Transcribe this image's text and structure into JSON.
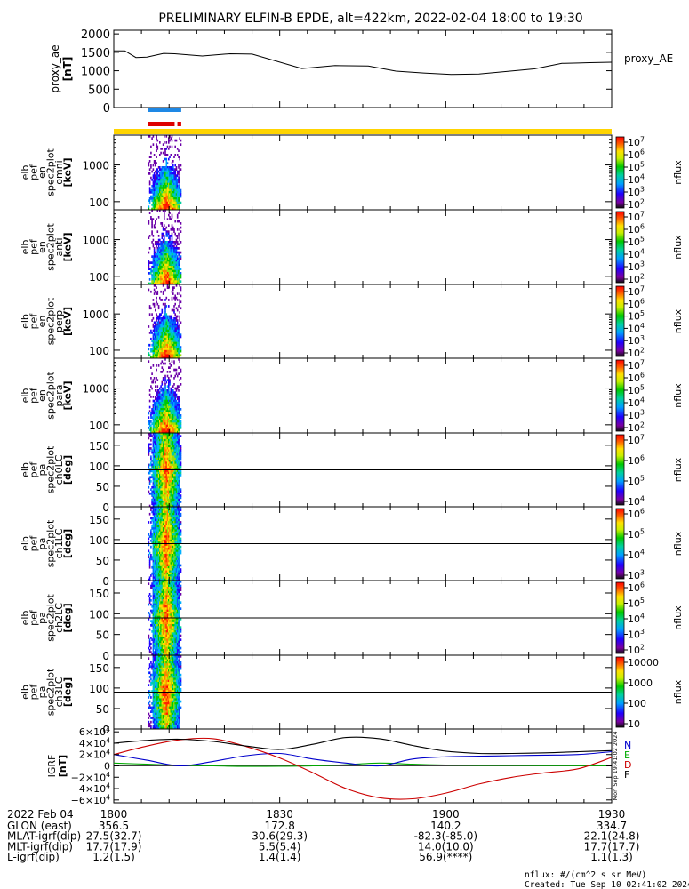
{
  "chart_data": {
    "type": "spectrogram",
    "title": "PRELIMINARY ELFIN-B EPDE, alt=422km, 2022-02-04 18:00 to 19:30",
    "time_range_minutes": [
      0,
      90
    ],
    "proxy_ae": {
      "ylabel": "proxy_ae",
      "yunit": "[nT]",
      "legend": "proxy_AE",
      "ylim": [
        0,
        2100
      ],
      "yticks": [
        "2000",
        "1500",
        "1000",
        "500",
        "0"
      ],
      "tick_values": [
        2000,
        1500,
        1000,
        500,
        0
      ],
      "t": [
        0,
        2,
        4,
        6,
        9,
        11,
        16,
        21,
        25,
        34,
        40,
        46,
        51,
        56,
        61,
        66,
        71,
        76,
        81,
        84,
        86,
        90
      ],
      "v": [
        1540,
        1540,
        1360,
        1370,
        1470,
        1460,
        1400,
        1460,
        1450,
        1060,
        1140,
        1130,
        990,
        940,
        900,
        910,
        980,
        1050,
        1200,
        1210,
        1220,
        1230
      ]
    },
    "science_bars": {
      "blue": [
        [
          6.2,
          12.2
        ]
      ],
      "red": [
        [
          6.2,
          11.0
        ],
        [
          11.5,
          12.2
        ]
      ],
      "colors": {
        "blue": "#1e88e5",
        "red": "#dd0000",
        "yellow": "#ffd400"
      }
    },
    "spec_panels": [
      {
        "labels": [
          "elb",
          "pef",
          "en",
          "spec2plot",
          "omni",
          "[keV]"
        ],
        "yticks": [
          "1000",
          "100"
        ],
        "tick_values": [
          1000,
          100
        ],
        "ymin": 60,
        "ymax": 6500,
        "scale": "log",
        "cb_ticks": [
          "10^7",
          "10^6",
          "10^5",
          "10^4",
          "10^3",
          "10^2"
        ],
        "cb_label": "nflux"
      },
      {
        "labels": [
          "elb",
          "pef",
          "en",
          "spec2plot",
          "anti",
          "[keV]"
        ],
        "yticks": [
          "1000",
          "100"
        ],
        "tick_values": [
          1000,
          100
        ],
        "ymin": 60,
        "ymax": 6500,
        "scale": "log",
        "cb_ticks": [
          "10^7",
          "10^6",
          "10^5",
          "10^4",
          "10^3",
          "10^2"
        ],
        "cb_label": "nflux"
      },
      {
        "labels": [
          "elb",
          "pef",
          "en",
          "spec2plot",
          "perp",
          "[keV]"
        ],
        "yticks": [
          "1000",
          "100"
        ],
        "tick_values": [
          1000,
          100
        ],
        "ymin": 60,
        "ymax": 6500,
        "scale": "log",
        "cb_ticks": [
          "10^7",
          "10^6",
          "10^5",
          "10^4",
          "10^3",
          "10^2"
        ],
        "cb_label": "nflux"
      },
      {
        "labels": [
          "elb",
          "pef",
          "en",
          "spec2plot",
          "para",
          "[keV]"
        ],
        "yticks": [
          "1000",
          "100"
        ],
        "tick_values": [
          1000,
          100
        ],
        "ymin": 60,
        "ymax": 6500,
        "scale": "log",
        "cb_ticks": [
          "10^7",
          "10^6",
          "10^5",
          "10^4",
          "10^3",
          "10^2"
        ],
        "cb_label": "nflux"
      },
      {
        "labels": [
          "elb",
          "pef",
          "pa",
          "spec2plot",
          "ch0LC",
          "[deg]"
        ],
        "yticks": [
          "150",
          "100",
          "50",
          "0"
        ],
        "tick_values": [
          150,
          100,
          50,
          0
        ],
        "ymin": 0,
        "ymax": 180,
        "scale": "lin",
        "lines": [
          90
        ],
        "cb_ticks": [
          "10^7",
          "10^6",
          "10^5",
          "10^4"
        ],
        "cb_label": "nflux"
      },
      {
        "labels": [
          "elb",
          "pef",
          "pa",
          "spec2plot",
          "ch1LC",
          "[deg]"
        ],
        "yticks": [
          "150",
          "100",
          "50",
          "0"
        ],
        "tick_values": [
          150,
          100,
          50,
          0
        ],
        "ymin": 0,
        "ymax": 180,
        "scale": "lin",
        "lines": [
          90
        ],
        "cb_ticks": [
          "10^6",
          "10^5",
          "10^4",
          "10^3"
        ],
        "cb_label": "nflux"
      },
      {
        "labels": [
          "elb",
          "pef",
          "pa",
          "spec2plot",
          "ch2LC",
          "[deg]"
        ],
        "yticks": [
          "150",
          "100",
          "50",
          "0"
        ],
        "tick_values": [
          150,
          100,
          50,
          0
        ],
        "ymin": 0,
        "ymax": 180,
        "scale": "lin",
        "lines": [
          90
        ],
        "cb_ticks": [
          "10^6",
          "10^5",
          "10^4",
          "10^3",
          "10^2"
        ],
        "cb_label": "nflux"
      },
      {
        "labels": [
          "elb",
          "pef",
          "pa",
          "spec2plot",
          "ch3LC",
          "[deg]"
        ],
        "yticks": [
          "150",
          "100",
          "50",
          "0"
        ],
        "tick_values": [
          150,
          100,
          50,
          0
        ],
        "ymin": 0,
        "ymax": 180,
        "scale": "lin",
        "lines": [
          90
        ],
        "cb_ticks": [
          "10000",
          "1000",
          "100",
          "10"
        ],
        "cb_label": "nflux"
      }
    ],
    "spectrum_time_range": [
      6.2,
      12.2
    ],
    "igrf": {
      "ylabel": "IGRF",
      "yunit": "[nT]",
      "yticks": [
        "6×10^4",
        "4×10^4",
        "2×10^4",
        "0",
        "−2×10^4",
        "−4×10^4",
        "−6×10^4"
      ],
      "tick_values": [
        60000,
        40000,
        20000,
        0,
        -20000,
        -40000,
        -60000
      ],
      "ylim": [
        -65000,
        65000
      ],
      "legend": [
        "N",
        "E",
        "D",
        "F"
      ],
      "colors": {
        "N": "#0000cc",
        "E": "#00aa00",
        "D": "#cc0000",
        "F": "#000000"
      },
      "t": [
        0,
        6,
        12,
        18,
        24,
        30,
        36,
        42,
        48,
        54,
        60,
        66,
        72,
        78,
        84,
        90
      ],
      "F": [
        40000,
        45000,
        47000,
        43000,
        35000,
        29000,
        38000,
        50000,
        48000,
        36000,
        26000,
        22000,
        22000,
        23000,
        25000,
        27000
      ],
      "N": [
        20000,
        10000,
        0,
        8000,
        18000,
        22000,
        12000,
        5000,
        0,
        12000,
        16000,
        17000,
        18000,
        19000,
        20000,
        25000
      ],
      "D": [
        20000,
        35000,
        46000,
        48000,
        34000,
        14000,
        -12000,
        -40000,
        -56000,
        -58000,
        -48000,
        -32000,
        -20000,
        -12000,
        -5000,
        15000
      ],
      "E": [
        5000,
        3000,
        1000,
        0,
        -1000,
        -800,
        0,
        2000,
        5000,
        3000,
        1500,
        1000,
        800,
        500,
        300,
        200
      ],
      "side_text": "Mon Sep 19:41:02 2024"
    },
    "x_axis": {
      "date_label": "2022 Feb 04",
      "ticks": [
        "1800",
        "1830",
        "1900",
        "1930"
      ],
      "tick_minutes": [
        0,
        30,
        60,
        90
      ]
    },
    "ephemeris": [
      {
        "label": "GLON (east)",
        "values": [
          "356.5",
          "172.8",
          "140.2",
          "334.7"
        ]
      },
      {
        "label": "MLAT-igrf(dip)",
        "values": [
          "27.5(32.7)",
          "30.6(29.3)",
          "-82.3(-85.0)",
          "22.1(24.8)"
        ]
      },
      {
        "label": "MLT-igrf(dip)",
        "values": [
          "17.7(17.9)",
          "5.5(5.4)",
          "14.0(10.0)",
          "17.7(17.7)"
        ]
      },
      {
        "label": "L-igrf(dip)",
        "values": [
          "1.2(1.5)",
          "1.4(1.4)",
          "56.9(****)",
          "1.1(1.3)"
        ]
      }
    ],
    "footer": {
      "units": "nflux: #/(cm^2 s sr MeV)",
      "created": "Created: Tue Sep 10 02:41:02 2024"
    }
  }
}
